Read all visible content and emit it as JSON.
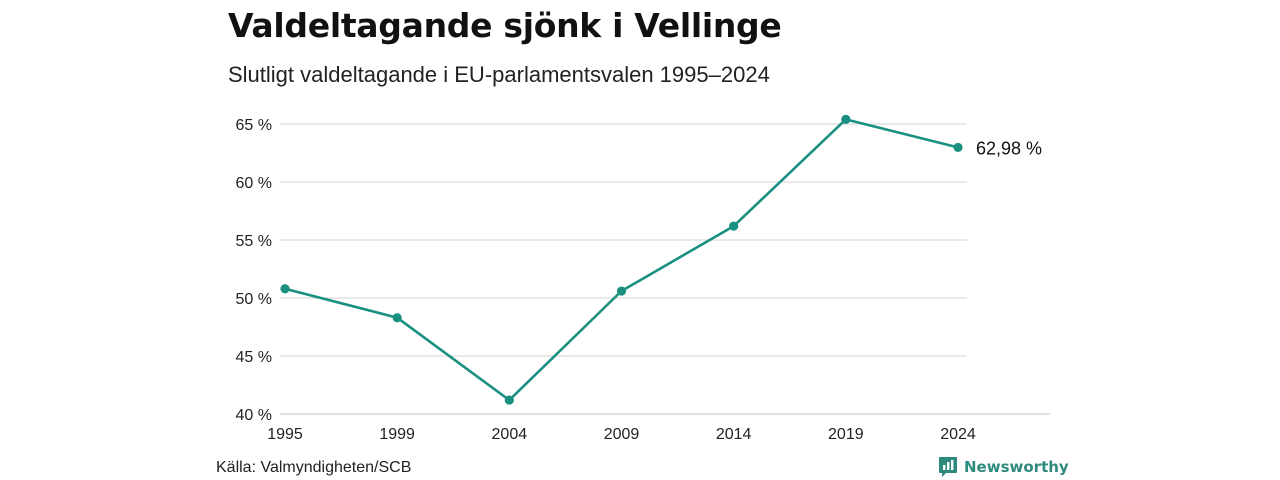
{
  "header": {
    "title": "Valdeltagande sjönk i Vellinge",
    "subtitle": "Slutligt valdeltagande i EU-parlamentsvalen 1995–2024"
  },
  "footer": {
    "source": "Källa: Valmyndigheten/SCB",
    "brand": "Newsworthy",
    "brand_icon": "bar-chart-logo-icon"
  },
  "colors": {
    "line": "#1a9080",
    "grid": "#dcdcdc",
    "brand": "#2f8a7e"
  },
  "chart_data": {
    "type": "line",
    "x": [
      "1995",
      "1999",
      "2004",
      "2009",
      "2014",
      "2019",
      "2024"
    ],
    "series": [
      {
        "values": [
          50.8,
          48.3,
          41.2,
          50.6,
          56.2,
          65.4,
          62.98
        ]
      }
    ],
    "ylim": [
      40,
      65
    ],
    "yticks": [
      "40 %",
      "45 %",
      "50 %",
      "55 %",
      "60 %",
      "65 %"
    ],
    "ytick_values": [
      40,
      45,
      50,
      55,
      60,
      65
    ],
    "end_label": "62,98 %",
    "grid": true,
    "legend": "none"
  }
}
